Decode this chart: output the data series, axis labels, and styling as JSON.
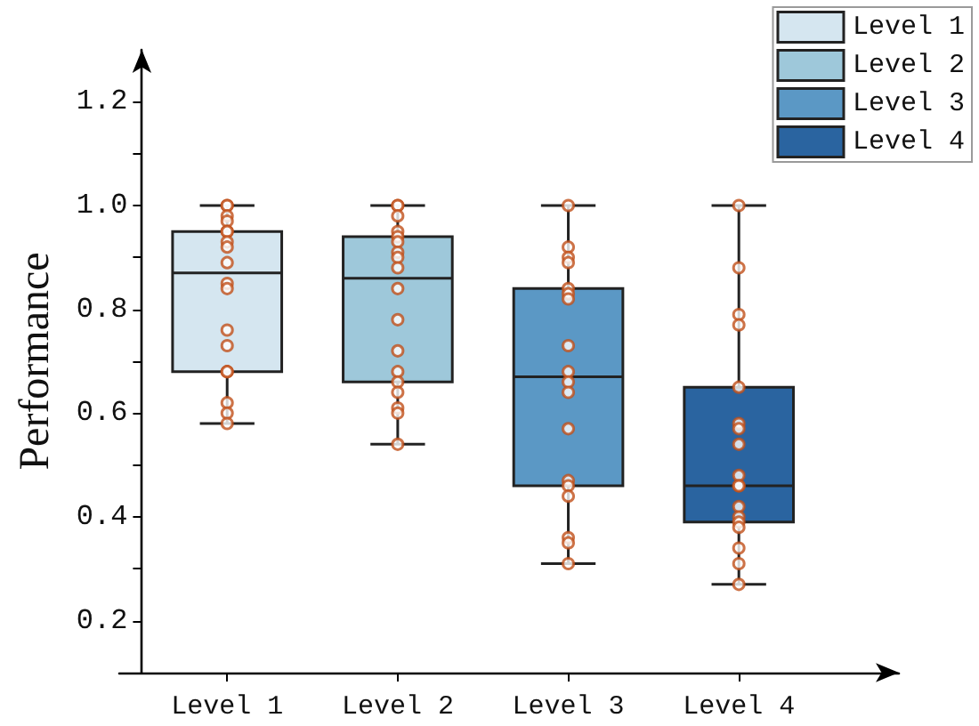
{
  "chart_data": {
    "type": "box",
    "ylabel": "Performance",
    "categories": [
      "Level 1",
      "Level 2",
      "Level 3",
      "Level 4"
    ],
    "ylim": [
      0.1,
      1.3
    ],
    "yticks": [
      {
        "value": 0.2,
        "label": "0.2"
      },
      {
        "value": 0.3,
        "label": null
      },
      {
        "value": 0.4,
        "label": "0.4"
      },
      {
        "value": 0.5,
        "label": null
      },
      {
        "value": 0.6,
        "label": "0.6"
      },
      {
        "value": 0.7,
        "label": null
      },
      {
        "value": 0.8,
        "label": "0.8"
      },
      {
        "value": 0.9,
        "label": null
      },
      {
        "value": 1,
        "label": "1.0"
      },
      {
        "value": 1.1,
        "label": null
      },
      {
        "value": 1.2,
        "label": "1.2"
      }
    ],
    "grid": false,
    "legend": "top right",
    "series": [
      {
        "type": "box",
        "name": "Level 1",
        "color": "#d5e6f0",
        "boxes": [
          {
            "low": 0.58,
            "q1": 0.68,
            "median": 0.87,
            "q3": 0.95,
            "high": 1.0
          },
          null,
          null,
          null
        ]
      },
      {
        "type": "box",
        "name": "Level 2",
        "color": "#9ec8da",
        "boxes": [
          null,
          {
            "low": 0.54,
            "q1": 0.66,
            "median": 0.86,
            "q3": 0.94,
            "high": 1.0
          },
          null,
          null
        ]
      },
      {
        "type": "box",
        "name": "Level 3",
        "color": "#5b98c5",
        "boxes": [
          null,
          null,
          {
            "low": 0.31,
            "q1": 0.46,
            "median": 0.67,
            "q3": 0.84,
            "high": 1.0
          },
          null
        ]
      },
      {
        "type": "box",
        "name": "Level 4",
        "color": "#2a64a0",
        "boxes": [
          null,
          null,
          null,
          {
            "low": 0.27,
            "q1": 0.39,
            "median": 0.46,
            "q3": 0.65,
            "high": 1.0
          }
        ]
      },
      {
        "type": "scatter",
        "color": "#c0501a",
        "marker": "circle",
        "x": [
          "Level 1",
          "Level 1",
          "Level 1",
          "Level 1",
          "Level 1",
          "Level 1",
          "Level 1",
          "Level 1",
          "Level 1",
          "Level 1",
          "Level 1",
          "Level 1",
          "Level 1",
          "Level 1",
          "Level 1",
          "Level 1",
          "Level 1",
          "Level 1",
          "Level 2",
          "Level 2",
          "Level 2",
          "Level 2",
          "Level 2",
          "Level 2",
          "Level 2",
          "Level 2",
          "Level 2",
          "Level 2",
          "Level 2",
          "Level 2",
          "Level 2",
          "Level 2",
          "Level 2",
          "Level 2",
          "Level 2",
          "Level 2",
          "Level 3",
          "Level 3",
          "Level 3",
          "Level 3",
          "Level 3",
          "Level 3",
          "Level 3",
          "Level 3",
          "Level 3",
          "Level 3",
          "Level 3",
          "Level 3",
          "Level 3",
          "Level 3",
          "Level 3",
          "Level 3",
          "Level 3",
          "Level 3",
          "Level 4",
          "Level 4",
          "Level 4",
          "Level 4",
          "Level 4",
          "Level 4",
          "Level 4",
          "Level 4",
          "Level 4",
          "Level 4",
          "Level 4",
          "Level 4",
          "Level 4",
          "Level 4",
          "Level 4",
          "Level 4",
          "Level 4",
          "Level 4"
        ],
        "values": [
          1.0,
          1.0,
          0.98,
          0.97,
          0.95,
          0.95,
          0.93,
          0.92,
          0.89,
          0.85,
          0.84,
          0.76,
          0.73,
          0.68,
          0.68,
          0.62,
          0.6,
          0.58,
          1.0,
          1.0,
          0.98,
          0.95,
          0.94,
          0.93,
          0.91,
          0.9,
          0.88,
          0.84,
          0.78,
          0.72,
          0.68,
          0.66,
          0.64,
          0.61,
          0.6,
          0.54,
          1.0,
          0.92,
          0.9,
          0.89,
          0.84,
          0.83,
          0.82,
          0.73,
          0.68,
          0.66,
          0.64,
          0.57,
          0.47,
          0.46,
          0.44,
          0.36,
          0.35,
          0.31,
          1.0,
          0.88,
          0.79,
          0.77,
          0.65,
          0.58,
          0.57,
          0.54,
          0.48,
          0.46,
          0.46,
          0.42,
          0.4,
          0.39,
          0.38,
          0.34,
          0.31,
          0.27
        ]
      }
    ]
  }
}
